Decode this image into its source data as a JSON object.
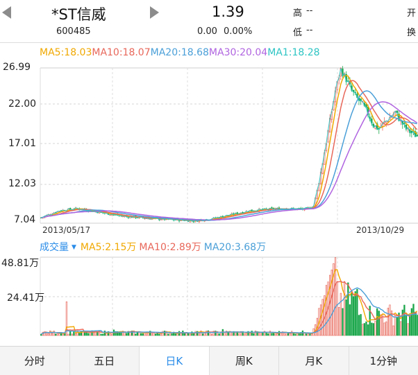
{
  "header": {
    "stock_name": "*ST信威",
    "stock_code": "600485",
    "price": "1.39",
    "change": "0.00",
    "change_pct": "0.00%",
    "high_label": "高",
    "high_value": "--",
    "low_label": "低",
    "low_value": "--",
    "open_label": "开",
    "turnover_label": "换"
  },
  "ma_legend": [
    {
      "text": "MA5:18.03",
      "color": "#f0a800"
    },
    {
      "text": "MA10:18.07",
      "color": "#e8675a"
    },
    {
      "text": "MA20:18.68",
      "color": "#4a9fd8"
    },
    {
      "text": "MA30:20.04",
      "color": "#b064e0"
    },
    {
      "text": "MA1:18.28",
      "color": "#2ec4c4"
    }
  ],
  "price_axis": [
    "26.99",
    "22.00",
    "17.01",
    "12.03",
    "7.04"
  ],
  "dates": {
    "start": "2013/05/17",
    "end": "2013/10/29"
  },
  "volume_legend": {
    "title": "成交量",
    "title_color": "#2a8ce8",
    "items": [
      {
        "text": "MA5:2.15万",
        "color": "#f0a800"
      },
      {
        "text": "MA10:2.89万",
        "color": "#e8675a"
      },
      {
        "text": "MA20:3.68万",
        "color": "#4a9fd8"
      }
    ]
  },
  "volume_axis": [
    "48.81万",
    "24.41万"
  ],
  "tabs": [
    "分时",
    "五日",
    "日K",
    "周K",
    "月K",
    "1分钟"
  ],
  "active_tab": 2,
  "colors": {
    "up": "#e8675a",
    "down": "#1aa64a",
    "accent": "#2a8ce8"
  },
  "chart_data": {
    "type": "candlestick",
    "start_date": "2013/05/17",
    "end_date": "2013/10/29",
    "ylim": [
      7.04,
      26.99
    ],
    "close_path": [
      [
        0,
        7.4
      ],
      [
        10,
        8.3
      ],
      [
        20,
        8.6
      ],
      [
        30,
        8.2
      ],
      [
        45,
        7.6
      ],
      [
        60,
        7.3
      ],
      [
        75,
        7.1
      ],
      [
        85,
        7.0
      ],
      [
        95,
        7.3
      ],
      [
        105,
        7.8
      ],
      [
        115,
        8.3
      ],
      [
        125,
        8.5
      ],
      [
        135,
        8.6
      ],
      [
        145,
        8.5
      ],
      [
        150,
        8.9
      ],
      [
        153,
        12.0
      ],
      [
        156,
        16.0
      ],
      [
        159,
        20.0
      ],
      [
        162,
        24.0
      ],
      [
        165,
        26.8
      ],
      [
        168,
        25.5
      ],
      [
        171,
        24.0
      ],
      [
        174,
        23.0
      ],
      [
        177,
        22.2
      ],
      [
        180,
        21.0
      ],
      [
        183,
        19.5
      ],
      [
        186,
        19.0
      ],
      [
        189,
        19.8
      ],
      [
        192,
        20.5
      ],
      [
        195,
        21.2
      ],
      [
        198,
        20.0
      ],
      [
        201,
        19.0
      ],
      [
        204,
        18.5
      ],
      [
        207,
        18.1
      ]
    ]
  }
}
